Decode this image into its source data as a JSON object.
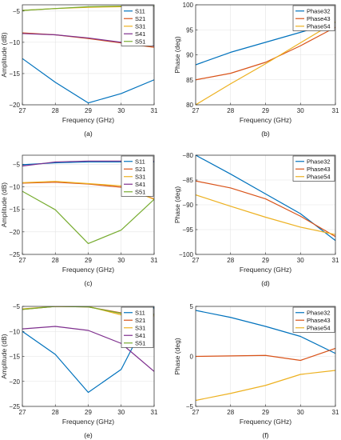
{
  "colors": [
    "#0072BD",
    "#D95319",
    "#EDB120",
    "#7E2F8E",
    "#77AC30"
  ],
  "chart_data": [
    {
      "type": "line",
      "panel_label": "(a)",
      "xlabel": "Frequency (GHz)",
      "ylabel": "Amplitude (dB)",
      "xlim": [
        27,
        31
      ],
      "ylim": [
        -20,
        -4
      ],
      "xticks": [
        27,
        28,
        29,
        30,
        31
      ],
      "yticks": [
        -20,
        -15,
        -10,
        -5
      ],
      "grid": true,
      "legend": "top-right",
      "x": [
        27,
        28,
        29,
        30,
        31
      ],
      "series": [
        {
          "name": "S11",
          "values": [
            -12.6,
            -16.4,
            -19.7,
            -18.2,
            -16.0
          ]
        },
        {
          "name": "S21",
          "values": [
            -8.5,
            -8.8,
            -9.4,
            -10.1,
            -10.8
          ]
        },
        {
          "name": "S31",
          "values": [
            -4.9,
            -4.6,
            -4.4,
            -4.3,
            -4.2
          ]
        },
        {
          "name": "S41",
          "values": [
            -8.6,
            -8.8,
            -9.3,
            -10.0,
            -10.6
          ]
        },
        {
          "name": "S51",
          "values": [
            -4.9,
            -4.6,
            -4.3,
            -4.2,
            -4.2
          ]
        }
      ]
    },
    {
      "type": "line",
      "panel_label": "(b)",
      "xlabel": "Frequency (GHz)",
      "ylabel": "Phase (deg)",
      "xlim": [
        27,
        31
      ],
      "ylim": [
        80,
        100
      ],
      "xticks": [
        27,
        28,
        29,
        30,
        31
      ],
      "yticks": [
        80,
        85,
        90,
        95,
        100
      ],
      "grid": true,
      "legend": "top-right",
      "x": [
        27,
        28,
        29,
        30,
        31
      ],
      "series": [
        {
          "name": "Phase32",
          "values": [
            88.0,
            90.5,
            92.5,
            94.5,
            96.5
          ]
        },
        {
          "name": "Phase43",
          "values": [
            85.0,
            86.3,
            88.5,
            91.8,
            95.5
          ]
        },
        {
          "name": "Phase54",
          "values": [
            80.0,
            84.2,
            88.2,
            92.4,
            96.6
          ]
        }
      ]
    },
    {
      "type": "line",
      "panel_label": "(c)",
      "xlabel": "Frequency (GHz)",
      "ylabel": "Amplitude (dB)",
      "xlim": [
        27,
        31
      ],
      "ylim": [
        -25,
        -3
      ],
      "xticks": [
        27,
        28,
        29,
        30,
        31
      ],
      "yticks": [
        -25,
        -20,
        -15,
        -10,
        -5
      ],
      "grid": true,
      "legend": "top-right",
      "x": [
        27,
        28,
        29,
        30,
        31
      ],
      "series": [
        {
          "name": "S11",
          "values": [
            -5.1,
            -4.7,
            -4.5,
            -4.5,
            -4.5
          ]
        },
        {
          "name": "S21",
          "values": [
            -9.2,
            -9.0,
            -9.4,
            -10.1,
            -12.7
          ]
        },
        {
          "name": "S31",
          "values": [
            -9.1,
            -8.8,
            -9.3,
            -9.8,
            -12.8
          ]
        },
        {
          "name": "S41",
          "values": [
            -5.4,
            -4.5,
            -4.3,
            -4.3,
            -4.3
          ]
        },
        {
          "name": "S51",
          "values": [
            -11.0,
            -15.1,
            -22.6,
            -19.6,
            -12.8
          ]
        }
      ]
    },
    {
      "type": "line",
      "panel_label": "(d)",
      "xlabel": "Frequency (GHz)",
      "ylabel": "Phase (deg)",
      "xlim": [
        27,
        31
      ],
      "ylim": [
        -100,
        -80
      ],
      "xticks": [
        27,
        28,
        29,
        30,
        31
      ],
      "yticks": [
        -100,
        -95,
        -90,
        -85,
        -80
      ],
      "grid": true,
      "legend": "top-right",
      "x": [
        27,
        28,
        29,
        30,
        31
      ],
      "series": [
        {
          "name": "Phase32",
          "values": [
            -80.0,
            -83.8,
            -87.8,
            -91.8,
            -97.2
          ]
        },
        {
          "name": "Phase43",
          "values": [
            -85.2,
            -86.6,
            -88.8,
            -92.3,
            -96.4
          ]
        },
        {
          "name": "Phase54",
          "values": [
            -88.0,
            -90.3,
            -92.5,
            -94.5,
            -96.0
          ]
        }
      ]
    },
    {
      "type": "line",
      "panel_label": "(e)",
      "xlabel": "Frequency (GHz)",
      "ylabel": "Amplitude (dB)",
      "xlim": [
        27,
        31
      ],
      "ylim": [
        -25,
        -5
      ],
      "xticks": [
        27,
        28,
        29,
        30,
        31
      ],
      "yticks": [
        -25,
        -20,
        -15,
        -10,
        -5
      ],
      "grid": true,
      "legend": "top-right",
      "x": [
        27,
        28,
        29,
        30,
        31
      ],
      "series": [
        {
          "name": "S11",
          "x": [
            27,
            28,
            29,
            30,
            30.5,
            31
          ],
          "values": [
            -10.0,
            -14.6,
            -22.2,
            -17.6,
            -11.2,
            -5.1
          ]
        },
        {
          "name": "S21",
          "values": [
            -5.6,
            -5.0,
            -5.1,
            -6.3,
            -6.6
          ]
        },
        {
          "name": "S31",
          "values": [
            -5.5,
            -5.0,
            -5.0,
            -6.7,
            -6.9
          ]
        },
        {
          "name": "S41",
          "values": [
            -9.5,
            -9.0,
            -9.8,
            -12.4,
            -18.0
          ]
        },
        {
          "name": "S51",
          "values": [
            -5.6,
            -5.0,
            -5.1,
            -6.4,
            -6.6
          ]
        }
      ]
    },
    {
      "type": "line",
      "panel_label": "(f)",
      "xlabel": "Frequency (GHz)",
      "ylabel": "Phase (deg)",
      "xlim": [
        27,
        31
      ],
      "ylim": [
        -5,
        5
      ],
      "xticks": [
        27,
        28,
        29,
        30,
        31
      ],
      "yticks": [
        -5,
        0,
        5
      ],
      "grid": true,
      "legend": "top-right",
      "x": [
        27,
        28,
        29,
        30,
        31
      ],
      "series": [
        {
          "name": "Phase32",
          "values": [
            4.6,
            3.9,
            3.0,
            2.0,
            0.3
          ]
        },
        {
          "name": "Phase43",
          "values": [
            0.0,
            0.05,
            0.1,
            -0.4,
            0.8
          ]
        },
        {
          "name": "Phase54",
          "values": [
            -4.4,
            -3.7,
            -2.9,
            -1.8,
            -1.4
          ]
        }
      ]
    }
  ]
}
